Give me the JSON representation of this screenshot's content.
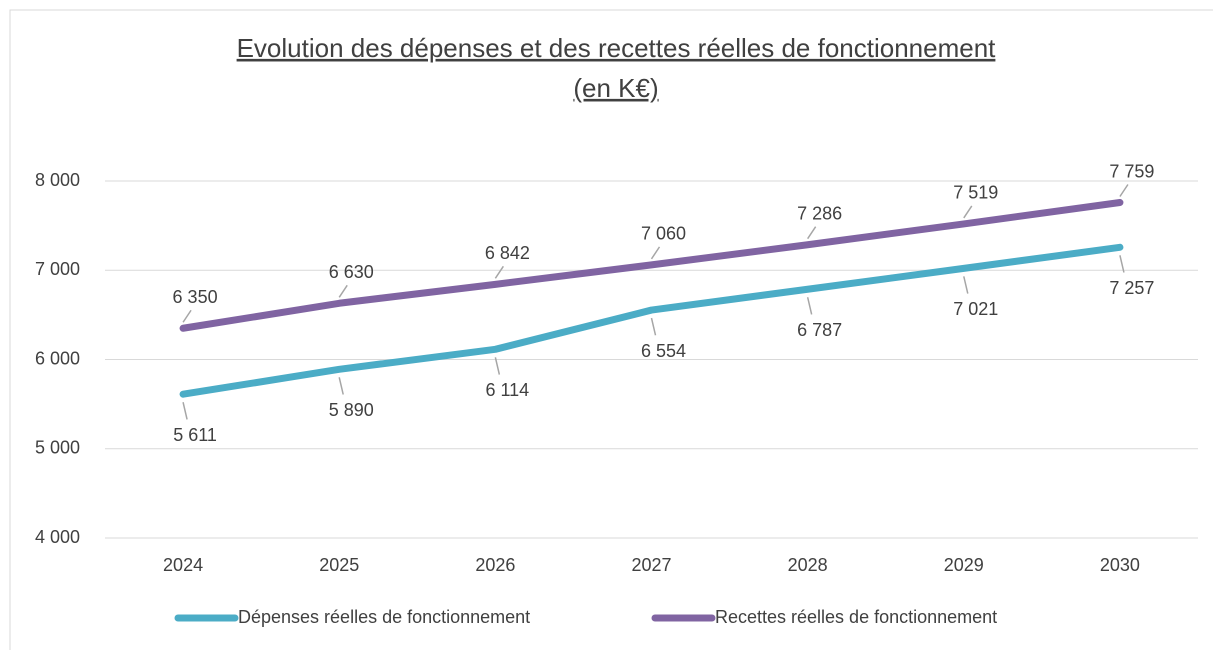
{
  "chart_data": {
    "type": "line",
    "title": [
      "Evolution des dépenses et des recettes réelles de fonctionnement",
      "(en K€)"
    ],
    "categories": [
      "2024",
      "2025",
      "2026",
      "2027",
      "2028",
      "2029",
      "2030"
    ],
    "series": [
      {
        "name": "Dépenses réelles de fonctionnement",
        "color": "#4bacc6",
        "values": [
          5611,
          5890,
          6114,
          6554,
          6787,
          7021,
          7257
        ],
        "value_labels": [
          "5 611",
          "5 890",
          "6 114",
          "6 554",
          "6 787",
          "7 021",
          "7 257"
        ]
      },
      {
        "name": "Recettes réelles de fonctionnement",
        "color": "#8064a2",
        "values": [
          6350,
          6630,
          6842,
          7060,
          7286,
          7519,
          7759
        ],
        "value_labels": [
          "6 350",
          "6 630",
          "6 842",
          "7 060",
          "7 286",
          "7 519",
          "7 759"
        ]
      }
    ],
    "ylim": [
      4000,
      8000
    ],
    "yticks": [
      {
        "value": 4000,
        "label": "4 000"
      },
      {
        "value": 5000,
        "label": "5 000"
      },
      {
        "value": 6000,
        "label": "6 000"
      },
      {
        "value": 7000,
        "label": "7 000"
      },
      {
        "value": 8000,
        "label": "8 000"
      }
    ],
    "grid": true,
    "legend": "bottom"
  }
}
